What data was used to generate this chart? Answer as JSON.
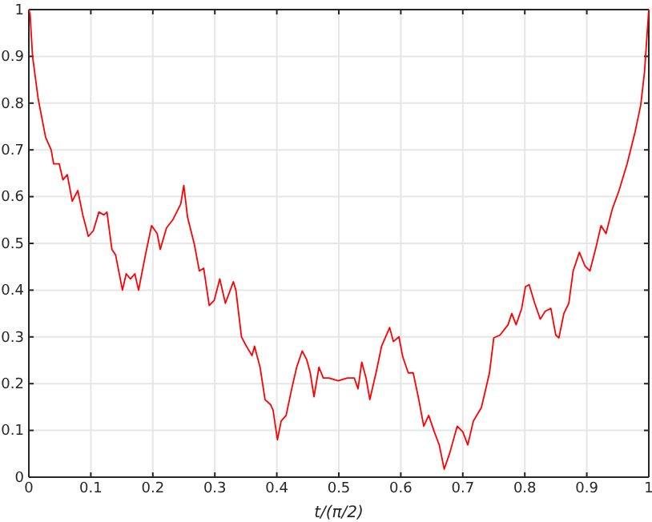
{
  "chart_data": {
    "type": "line",
    "xlabel": "t/(π/2)",
    "xlim": [
      0,
      1
    ],
    "ylim": [
      0,
      1
    ],
    "xticks": [
      0,
      0.1,
      0.2,
      0.3,
      0.4,
      0.5,
      0.6,
      0.7,
      0.8,
      0.9,
      1
    ],
    "yticks": [
      0,
      0.1,
      0.2,
      0.3,
      0.4,
      0.5,
      0.6,
      0.7,
      0.8,
      0.9,
      1
    ],
    "grid": true,
    "marker": "none",
    "line_style": "solid",
    "series": [
      {
        "color": "#ff0000",
        "x": [
          0,
          0.002,
          0.006,
          0.015,
          0.027,
          0.036,
          0.04,
          0.049,
          0.055,
          0.062,
          0.07,
          0.079,
          0.087,
          0.096,
          0.104,
          0.113,
          0.121,
          0.126,
          0.134,
          0.14,
          0.151,
          0.157,
          0.164,
          0.171,
          0.177,
          0.188,
          0.198,
          0.207,
          0.212,
          0.222,
          0.232,
          0.245,
          0.25,
          0.256,
          0.267,
          0.275,
          0.282,
          0.291,
          0.299,
          0.308,
          0.317,
          0.33,
          0.334,
          0.343,
          0.351,
          0.36,
          0.364,
          0.373,
          0.381,
          0.39,
          0.394,
          0.401,
          0.407,
          0.415,
          0.424,
          0.432,
          0.441,
          0.448,
          0.454,
          0.46,
          0.468,
          0.475,
          0.484,
          0.499,
          0.514,
          0.525,
          0.531,
          0.537,
          0.544,
          0.55,
          0.56,
          0.569,
          0.582,
          0.588,
          0.597,
          0.603,
          0.612,
          0.62,
          0.629,
          0.637,
          0.645,
          0.654,
          0.662,
          0.67,
          0.679,
          0.691,
          0.7,
          0.708,
          0.717,
          0.73,
          0.743,
          0.75,
          0.76,
          0.773,
          0.779,
          0.786,
          0.795,
          0.801,
          0.807,
          0.816,
          0.825,
          0.833,
          0.842,
          0.85,
          0.855,
          0.863,
          0.871,
          0.878,
          0.888,
          0.897,
          0.905,
          0.914,
          0.923,
          0.931,
          0.941,
          0.952,
          0.965,
          0.978,
          0.987,
          0.993,
          0.998,
          1
        ],
        "values": [
          1,
          0.99,
          0.9,
          0.81,
          0.727,
          0.7,
          0.67,
          0.67,
          0.636,
          0.647,
          0.59,
          0.613,
          0.561,
          0.515,
          0.527,
          0.567,
          0.561,
          0.567,
          0.487,
          0.475,
          0.4,
          0.435,
          0.424,
          0.435,
          0.4,
          0.475,
          0.538,
          0.521,
          0.487,
          0.533,
          0.55,
          0.584,
          0.624,
          0.556,
          0.498,
          0.441,
          0.447,
          0.367,
          0.378,
          0.424,
          0.372,
          0.418,
          0.4,
          0.3,
          0.28,
          0.26,
          0.28,
          0.235,
          0.166,
          0.155,
          0.143,
          0.08,
          0.12,
          0.132,
          0.189,
          0.235,
          0.27,
          0.252,
          0.223,
          0.172,
          0.235,
          0.212,
          0.212,
          0.206,
          0.212,
          0.212,
          0.189,
          0.246,
          0.212,
          0.166,
          0.223,
          0.28,
          0.32,
          0.29,
          0.3,
          0.258,
          0.223,
          0.223,
          0.166,
          0.109,
          0.132,
          0.097,
          0.069,
          0.017,
          0.052,
          0.109,
          0.097,
          0.069,
          0.12,
          0.149,
          0.223,
          0.298,
          0.304,
          0.326,
          0.35,
          0.326,
          0.361,
          0.407,
          0.412,
          0.372,
          0.338,
          0.355,
          0.361,
          0.304,
          0.298,
          0.35,
          0.372,
          0.441,
          0.481,
          0.452,
          0.441,
          0.487,
          0.538,
          0.521,
          0.573,
          0.613,
          0.67,
          0.739,
          0.796,
          0.865,
          0.962,
          1
        ]
      }
    ]
  }
}
